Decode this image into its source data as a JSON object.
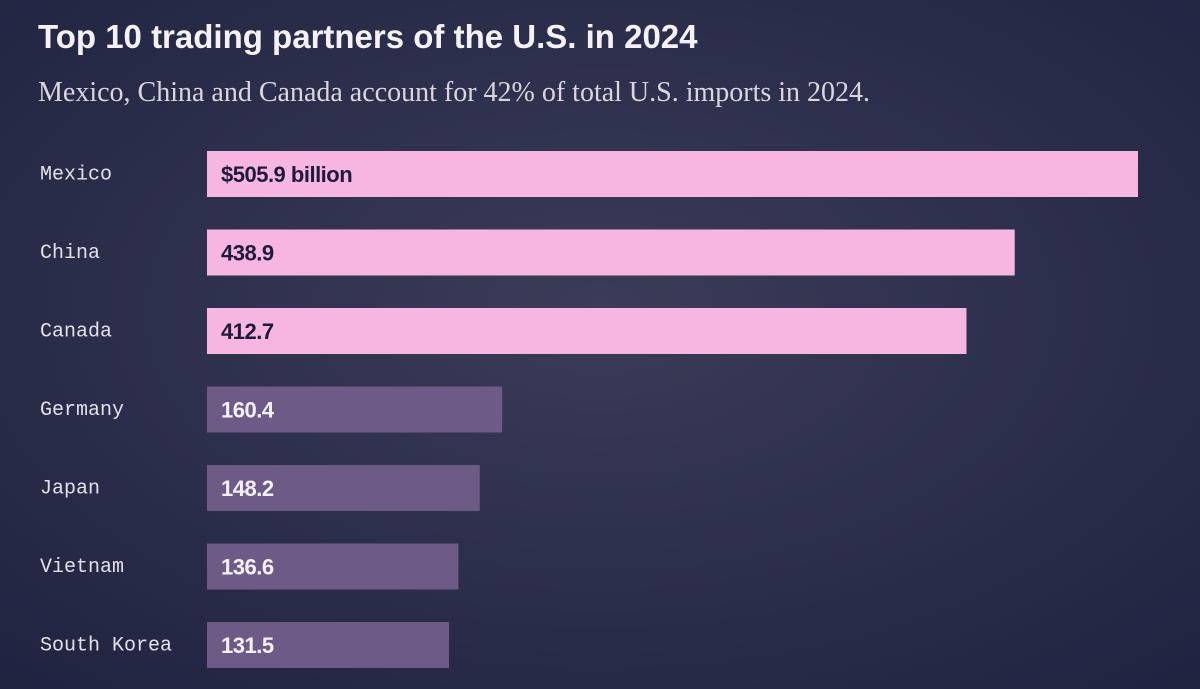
{
  "chart_data": {
    "type": "bar",
    "orientation": "horizontal",
    "title": "Top 10 trading partners of the U.S. in 2024",
    "subtitle": "Mexico, China and Canada account for 42% of total U.S. imports in 2024.",
    "categories": [
      "Mexico",
      "China",
      "Canada",
      "Germany",
      "Japan",
      "Vietnam",
      "South Korea"
    ],
    "values": [
      505.9,
      438.9,
      412.7,
      160.4,
      148.2,
      136.6,
      131.5
    ],
    "value_labels": [
      "$505.9 billion",
      "438.9",
      "412.7",
      "160.4",
      "148.2",
      "136.6",
      "131.5"
    ],
    "colors": [
      "#f7b6e2",
      "#f7b6e2",
      "#f7b6e2",
      "#6e5a86",
      "#6e5a86",
      "#6e5a86",
      "#6e5a86"
    ]
  }
}
